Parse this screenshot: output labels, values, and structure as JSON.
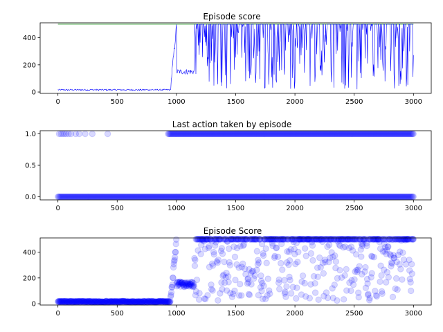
{
  "chart_data": [
    {
      "type": "line",
      "title": "Episode score",
      "xlabel": "",
      "ylabel": "",
      "xlim": [
        -150,
        3150
      ],
      "ylim": [
        -10,
        510
      ],
      "xticks": [
        0,
        500,
        1000,
        1500,
        2000,
        2500,
        3000
      ],
      "yticks": [
        0,
        200,
        400
      ],
      "grid": false,
      "series": [
        {
          "role": "score",
          "color": "#0000ff",
          "phases": [
            {
              "x": [
                0,
                950
              ],
              "level": 16,
              "spread": 10
            },
            {
              "x": [
                950,
                1000
              ],
              "from": 30,
              "to": 480
            },
            {
              "x": [
                1000,
                1150
              ],
              "level": 150,
              "spread": 40
            },
            {
              "x": [
                1150,
                3000
              ],
              "low": 20,
              "high": 500
            }
          ]
        },
        {
          "role": "max-score",
          "color": "#2ca02c",
          "x": [
            0,
            3000
          ],
          "y": [
            500,
            500
          ]
        }
      ]
    },
    {
      "type": "scatter",
      "title": "Last action taken by episode",
      "xlabel": "",
      "ylabel": "",
      "xlim": [
        -150,
        3150
      ],
      "ylim": [
        -0.05,
        1.05
      ],
      "xticks": [
        0,
        500,
        1000,
        1500,
        2000,
        2500,
        3000
      ],
      "yticks": [
        0.0,
        0.5,
        1.0
      ],
      "ytick_labels": [
        "0.0",
        "0.5",
        "1.0"
      ],
      "grid": false,
      "color": "#0000ff",
      "alpha": 0.15,
      "groups": [
        {
          "x": [
            0,
            3000
          ],
          "y": 0
        },
        {
          "x": [
            930,
            3000
          ],
          "y": 1
        },
        {
          "x_points": [
            10,
            25,
            40,
            55,
            70,
            90,
            110,
            150,
            180,
            230,
            290,
            420
          ],
          "y": 1
        }
      ]
    },
    {
      "type": "scatter",
      "title": "Episode Score",
      "xlabel": "",
      "ylabel": "",
      "xlim": [
        -150,
        3150
      ],
      "ylim": [
        -10,
        510
      ],
      "xticks": [
        0,
        500,
        1000,
        1500,
        2000,
        2500,
        3000
      ],
      "yticks": [
        0,
        200,
        400
      ],
      "grid": false,
      "color": "#0000ff",
      "alpha": 0.15,
      "phases": [
        {
          "x": [
            0,
            950
          ],
          "level": 16,
          "spread": 10
        },
        {
          "x": [
            950,
            1000
          ],
          "from": 30,
          "to": 480
        },
        {
          "x": [
            1000,
            1150
          ],
          "level": 150,
          "spread": 40
        },
        {
          "x": [
            1150,
            3000
          ],
          "low": 20,
          "high": 500
        }
      ]
    }
  ]
}
